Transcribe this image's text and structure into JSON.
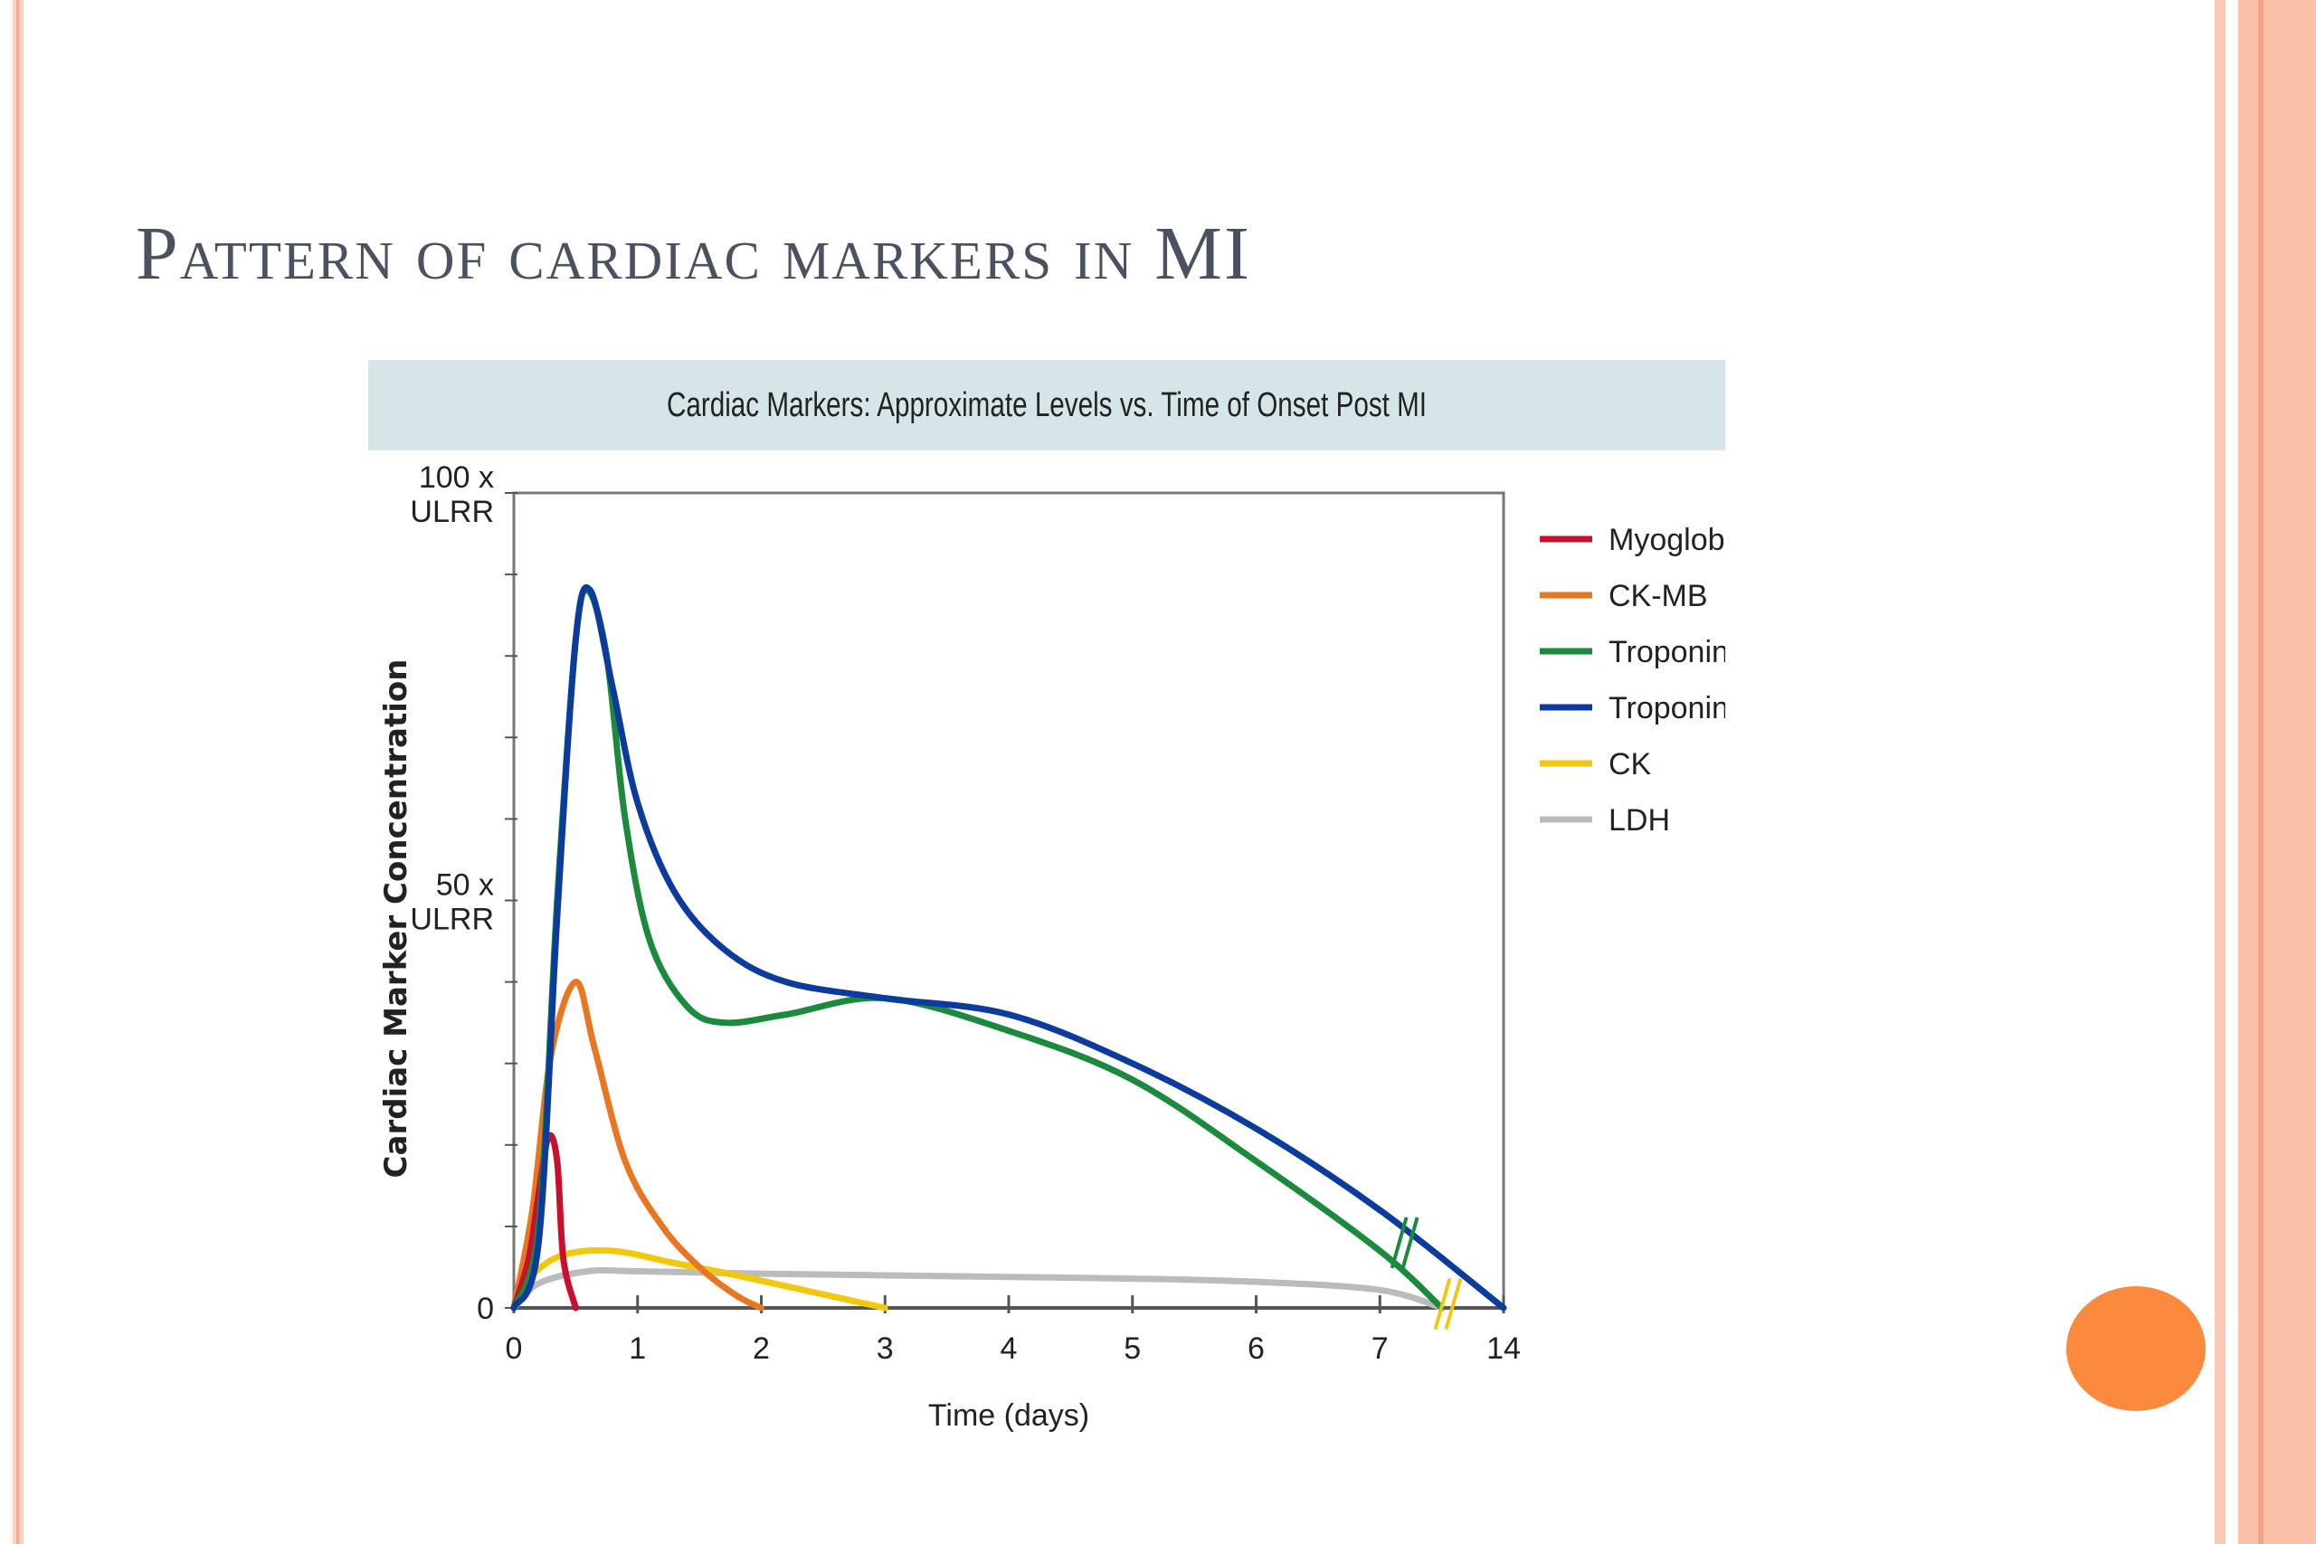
{
  "slide": {
    "title": "Pattern of cardiac markers in MI"
  },
  "chart_data": {
    "type": "line",
    "title": "Cardiac Markers: Approximate Levels vs. Time of Onset Post MI",
    "xlabel": "Time (days)",
    "ylabel": "Cardiac Marker Concentration",
    "x_ticks": [
      "0",
      "1",
      "2",
      "3",
      "4",
      "5",
      "6",
      "7",
      "14"
    ],
    "y_ticks": [
      {
        "value": 0,
        "lines": [
          "0"
        ]
      },
      {
        "value": 50,
        "lines": [
          "50 x",
          "ULRR"
        ]
      },
      {
        "value": 100,
        "lines": [
          "100 x",
          "ULRR"
        ]
      }
    ],
    "xlim": [
      0,
      8
    ],
    "ylim": [
      0,
      100
    ],
    "x_axis_note": "final tick labelled 14 (axis break after 7)",
    "grid": false,
    "legend_position": "right",
    "series": [
      {
        "name": "Myoglobin",
        "color": "#c8102e",
        "points": [
          [
            0,
            0
          ],
          [
            0.12,
            6
          ],
          [
            0.2,
            14
          ],
          [
            0.28,
            21
          ],
          [
            0.35,
            18
          ],
          [
            0.4,
            6
          ],
          [
            0.5,
            0
          ]
        ]
      },
      {
        "name": "CK-MB",
        "color": "#e87722",
        "points": [
          [
            0,
            0
          ],
          [
            0.15,
            12
          ],
          [
            0.3,
            31
          ],
          [
            0.5,
            40
          ],
          [
            0.65,
            32
          ],
          [
            0.9,
            18
          ],
          [
            1.2,
            10
          ],
          [
            1.5,
            5
          ],
          [
            1.8,
            1.5
          ],
          [
            2,
            0
          ]
        ]
      },
      {
        "name": "Troponin I",
        "color": "#1b8a3c",
        "points": [
          [
            0,
            0
          ],
          [
            0.2,
            10
          ],
          [
            0.35,
            50
          ],
          [
            0.5,
            82
          ],
          [
            0.6,
            88
          ],
          [
            0.75,
            80
          ],
          [
            0.9,
            60
          ],
          [
            1.1,
            45
          ],
          [
            1.4,
            37
          ],
          [
            1.7,
            35
          ],
          [
            2.2,
            36
          ],
          [
            3,
            38
          ],
          [
            4,
            34
          ],
          [
            5,
            28
          ],
          [
            6,
            18
          ],
          [
            7,
            7
          ],
          [
            7.5,
            0
          ]
        ]
      },
      {
        "name": "Troponin T",
        "color": "#0b3b9c",
        "points": [
          [
            0,
            0
          ],
          [
            0.2,
            8
          ],
          [
            0.35,
            48
          ],
          [
            0.5,
            82
          ],
          [
            0.62,
            88
          ],
          [
            0.8,
            76
          ],
          [
            1.0,
            62
          ],
          [
            1.3,
            51
          ],
          [
            1.7,
            44
          ],
          [
            2.2,
            40
          ],
          [
            3,
            38
          ],
          [
            4,
            36
          ],
          [
            5,
            30
          ],
          [
            6,
            22
          ],
          [
            7,
            12
          ],
          [
            8,
            0
          ]
        ]
      },
      {
        "name": "CK",
        "color": "#f2c80f",
        "points": [
          [
            0,
            0
          ],
          [
            0.15,
            4
          ],
          [
            0.4,
            6.5
          ],
          [
            0.8,
            7
          ],
          [
            1.3,
            5.5
          ],
          [
            1.8,
            4
          ],
          [
            2.4,
            2
          ],
          [
            3,
            0
          ]
        ]
      },
      {
        "name": "LDH",
        "color": "#bbbbbb",
        "points": [
          [
            0,
            0
          ],
          [
            0.2,
            3
          ],
          [
            0.6,
            4.5
          ],
          [
            1,
            4.5
          ],
          [
            2,
            4.2
          ],
          [
            3,
            4
          ],
          [
            4,
            3.8
          ],
          [
            5,
            3.6
          ],
          [
            6,
            3.2
          ],
          [
            7,
            2.2
          ],
          [
            7.5,
            0
          ]
        ]
      }
    ]
  }
}
